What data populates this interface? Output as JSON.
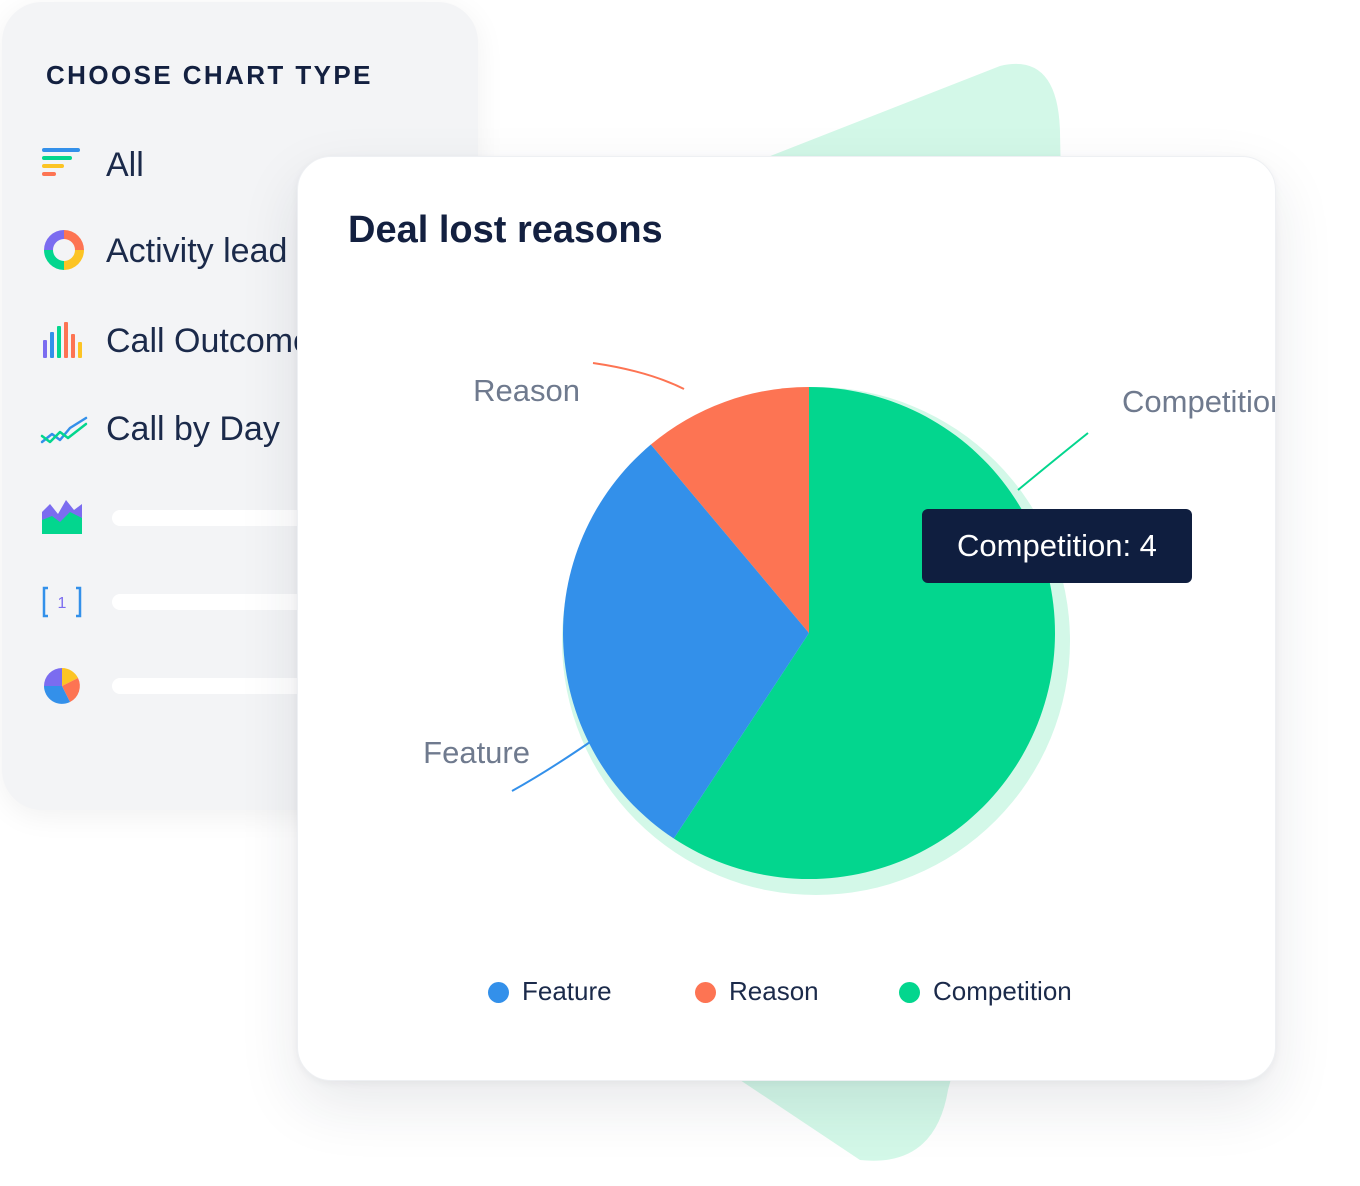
{
  "chooser": {
    "title": "CHOOSE CHART TYPE",
    "items": [
      {
        "label": "All",
        "icon": "list-filter-icon"
      },
      {
        "label": "Activity lead",
        "icon": "donut-chart-icon"
      },
      {
        "label": "Call Outcome",
        "icon": "bar-chart-icon"
      },
      {
        "label": "Call by Day",
        "icon": "line-chart-icon"
      },
      {
        "label": "",
        "icon": "area-chart-icon"
      },
      {
        "label": "",
        "icon": "number-bracket-icon"
      },
      {
        "label": "",
        "icon": "pie-chart-icon"
      }
    ],
    "number_icon_text": "1"
  },
  "card": {
    "title": "Deal lost reasons",
    "tooltip": "Competition: 4"
  },
  "colors": {
    "feature": "#3390ea",
    "reason": "#fd7453",
    "competition": "#03d68e",
    "background_shape": "#d3f8e8"
  },
  "chart_data": {
    "type": "pie",
    "title": "Deal lost reasons",
    "categories": [
      "Feature",
      "Reason",
      "Competition"
    ],
    "values": [
      2,
      0.75,
      4
    ],
    "colors": [
      "#3390ea",
      "#fd7453",
      "#03d68e"
    ],
    "legend": "bottom",
    "highlighted": "Competition"
  }
}
